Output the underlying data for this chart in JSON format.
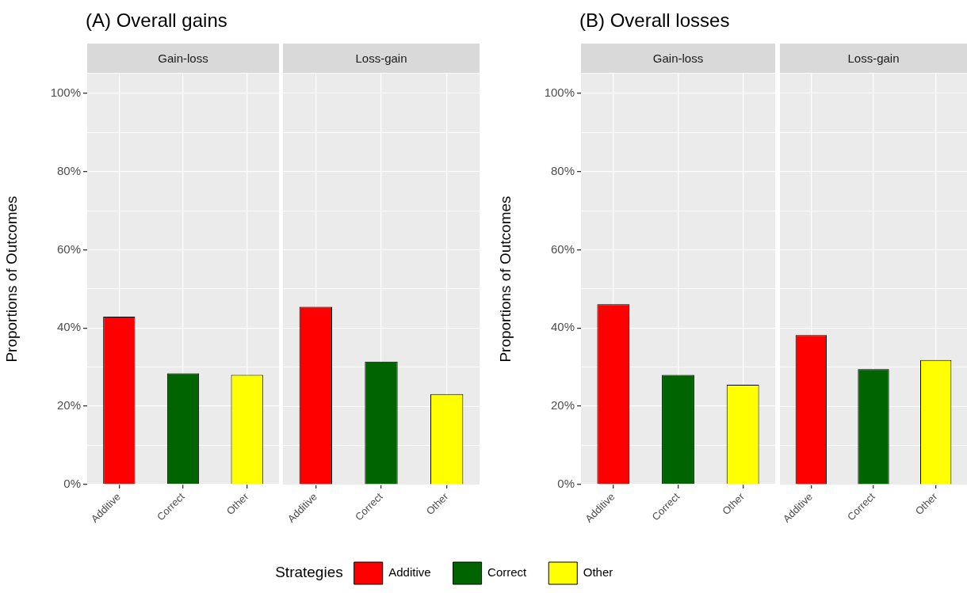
{
  "chart_data": [
    {
      "type": "bar",
      "title": "(A) Overall gains",
      "subtitle": "Gain-loss",
      "ylabel": "Proportions of Outcomes",
      "categories": [
        "Additive",
        "Correct",
        "Other"
      ],
      "series": [
        {
          "name": "Additive",
          "color": "#ff0000",
          "values": [
            42.9,
            null,
            null
          ]
        },
        {
          "name": "Correct",
          "color": "#006400",
          "values": [
            null,
            28.4,
            null
          ]
        },
        {
          "name": "Other",
          "color": "#ffff00",
          "values": [
            null,
            null,
            28.0
          ]
        }
      ],
      "ylim": [
        0,
        105
      ],
      "yticks": [
        {
          "value": 0,
          "label": "0%"
        },
        {
          "value": 10,
          "label": null
        },
        {
          "value": 20,
          "label": "20%"
        },
        {
          "value": 30,
          "label": null
        },
        {
          "value": 40,
          "label": "40%"
        },
        {
          "value": 50,
          "label": null
        },
        {
          "value": 60,
          "label": "60%"
        },
        {
          "value": 70,
          "label": null
        },
        {
          "value": 80,
          "label": "80%"
        },
        {
          "value": 90,
          "label": null
        },
        {
          "value": 100,
          "label": "100%"
        }
      ],
      "grid": true,
      "legend": "bottom",
      "legend_title": "Strategies"
    },
    {
      "type": "bar",
      "subtitle": "Loss-gain",
      "categories": [
        "Additive",
        "Correct",
        "Other"
      ],
      "series": [
        {
          "color": "#ff0000",
          "values": [
            45.4,
            null,
            null
          ]
        },
        {
          "color": "#006400",
          "values": [
            null,
            31.4,
            null
          ]
        },
        {
          "color": "#ffff00",
          "values": [
            null,
            null,
            23.1
          ]
        }
      ],
      "ylim": [
        0,
        105
      ],
      "yticks": [
        {
          "value": 0,
          "label": null
        },
        {
          "value": 10,
          "label": null
        },
        {
          "value": 20,
          "label": null
        },
        {
          "value": 30,
          "label": null
        },
        {
          "value": 40,
          "label": null
        },
        {
          "value": 50,
          "label": null
        },
        {
          "value": 60,
          "label": null
        },
        {
          "value": 70,
          "label": null
        },
        {
          "value": 80,
          "label": null
        },
        {
          "value": 90,
          "label": null
        },
        {
          "value": 100,
          "label": null
        }
      ],
      "grid": true,
      "tick_labels": "x"
    },
    {
      "type": "bar",
      "title": "(B) Overall losses",
      "subtitle": "Gain-loss",
      "ylabel": "Proportions of Outcomes",
      "categories": [
        "Additive",
        "Correct",
        "Other"
      ],
      "series": [
        {
          "color": "#ff0000",
          "values": [
            46.1,
            null,
            null
          ]
        },
        {
          "color": "#006400",
          "values": [
            null,
            28.0,
            null
          ]
        },
        {
          "color": "#ffff00",
          "values": [
            null,
            null,
            25.5
          ]
        }
      ],
      "ylim": [
        0,
        105
      ],
      "yticks": [
        {
          "value": 0,
          "label": "0%"
        },
        {
          "value": 10,
          "label": null
        },
        {
          "value": 20,
          "label": "20%"
        },
        {
          "value": 30,
          "label": null
        },
        {
          "value": 40,
          "label": "40%"
        },
        {
          "value": 50,
          "label": null
        },
        {
          "value": 60,
          "label": "60%"
        },
        {
          "value": 70,
          "label": null
        },
        {
          "value": 80,
          "label": "80%"
        },
        {
          "value": 90,
          "label": null
        },
        {
          "value": 100,
          "label": "100%"
        }
      ],
      "grid": true
    },
    {
      "type": "bar",
      "subtitle": "Loss-gain",
      "categories": [
        "Additive",
        "Correct",
        "Other"
      ],
      "series": [
        {
          "color": "#ff0000",
          "values": [
            38.2,
            null,
            null
          ]
        },
        {
          "color": "#006400",
          "values": [
            null,
            29.5,
            null
          ]
        },
        {
          "color": "#ffff00",
          "values": [
            null,
            null,
            31.8
          ]
        }
      ],
      "ylim": [
        0,
        105
      ],
      "yticks": [
        {
          "value": 0,
          "label": null
        },
        {
          "value": 10,
          "label": null
        },
        {
          "value": 20,
          "label": null
        },
        {
          "value": 30,
          "label": null
        },
        {
          "value": 40,
          "label": null
        },
        {
          "value": 50,
          "label": null
        },
        {
          "value": 60,
          "label": null
        },
        {
          "value": 70,
          "label": null
        },
        {
          "value": 80,
          "label": null
        },
        {
          "value": 90,
          "label": null
        },
        {
          "value": 100,
          "label": null
        }
      ],
      "grid": true,
      "tick_labels": "x"
    }
  ]
}
